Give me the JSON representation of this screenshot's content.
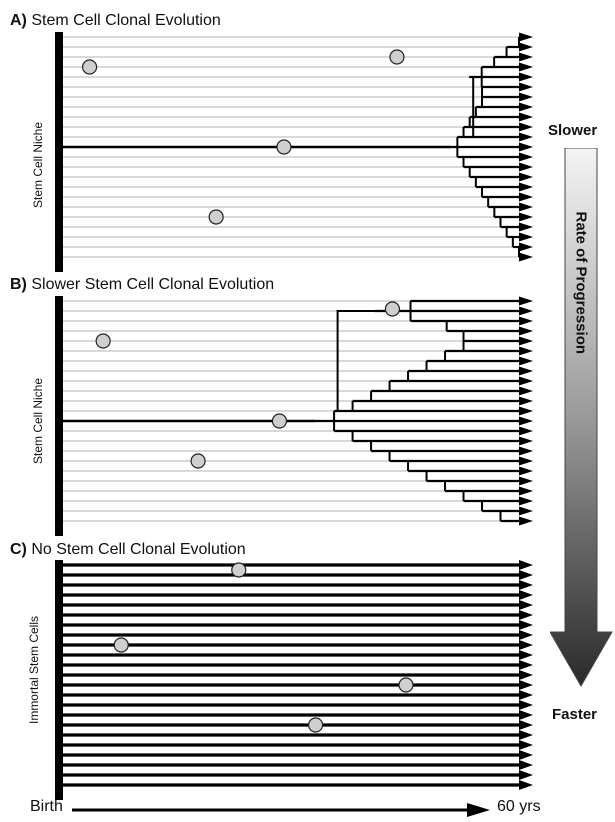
{
  "panels": [
    {
      "letter": "A)",
      "title": "Stem Cell Clonal Evolution",
      "side_label": "Stem Cell Niche",
      "mode": "clonal",
      "dots": [
        [
          0.05,
          3
        ],
        [
          0.33,
          18
        ],
        [
          0.48,
          11
        ],
        [
          0.73,
          2
        ]
      ],
      "trunk": {
        "row": 11,
        "split": 0.85
      },
      "sub": {
        "row": 4,
        "split": 0.89
      }
    },
    {
      "letter": "B)",
      "title": "Slower Stem Cell Clonal Evolution",
      "side_label": "Stem Cell Niche",
      "mode": "clonal",
      "dots": [
        [
          0.08,
          4
        ],
        [
          0.29,
          16
        ],
        [
          0.47,
          12
        ],
        [
          0.72,
          0.8
        ]
      ],
      "trunk": {
        "row": 12,
        "split": 0.55
      },
      "sub": {
        "row": 1,
        "split": 0.68
      }
    },
    {
      "letter": "C)",
      "title": "No Stem Cell Clonal Evolution",
      "side_label": "Immortal Stem Cells",
      "mode": "immortal",
      "dots": [
        [
          0.38,
          0.5
        ],
        [
          0.12,
          8
        ],
        [
          0.75,
          12
        ],
        [
          0.55,
          16
        ]
      ]
    }
  ],
  "rate": {
    "slower": "Slower",
    "faster": "Faster",
    "label": "Rate of Progression"
  },
  "time_axis": {
    "start": "Birth",
    "end": "60 yrs"
  }
}
